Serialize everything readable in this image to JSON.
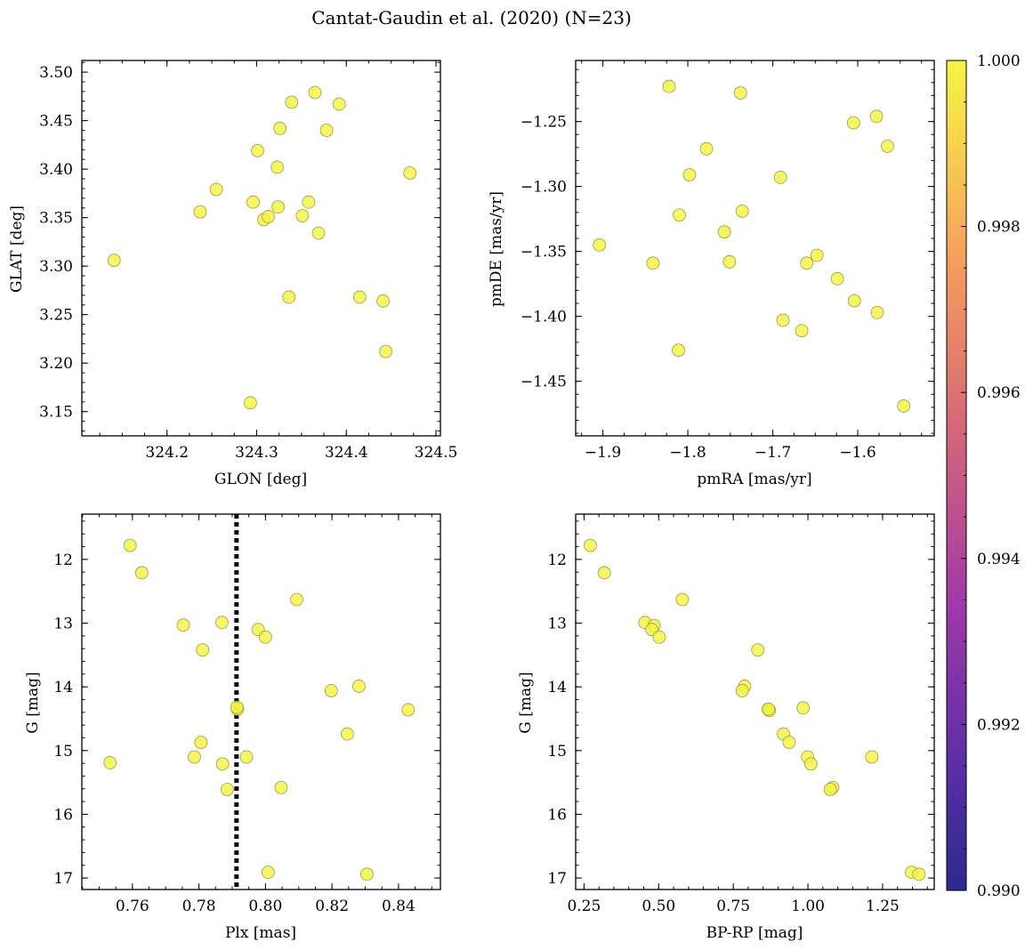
{
  "title": "Cantat-Gaudin et al. (2020) (N=23)",
  "colorbar": {
    "range": [
      0.99,
      1.0
    ],
    "tick_labels": [
      "0.990",
      "0.992",
      "0.994",
      "0.996",
      "0.998",
      "1.000"
    ],
    "colormap": "plasma"
  },
  "point_style": {
    "fill": "#f4f43c",
    "edge": "#9a9a50",
    "alpha": 0.8
  },
  "chart_data": [
    {
      "type": "scatter",
      "xlabel": "GLON [deg]",
      "ylabel": "GLAT [deg]",
      "xlim": [
        324.105,
        324.505
      ],
      "ylim": [
        3.125,
        3.512
      ],
      "x_ticks": [
        "324.2",
        "324.3",
        "324.4",
        "324.5"
      ],
      "y_ticks": [
        "3.15",
        "3.20",
        "3.25",
        "3.30",
        "3.35",
        "3.40",
        "3.45",
        "3.50"
      ],
      "points": [
        [
          324.141,
          3.306
        ],
        [
          324.237,
          3.356
        ],
        [
          324.255,
          3.379
        ],
        [
          324.293,
          3.159
        ],
        [
          324.296,
          3.366
        ],
        [
          324.301,
          3.419
        ],
        [
          324.308,
          3.348
        ],
        [
          324.313,
          3.351
        ],
        [
          324.323,
          3.402
        ],
        [
          324.324,
          3.361
        ],
        [
          324.326,
          3.442
        ],
        [
          324.336,
          3.268
        ],
        [
          324.339,
          3.469
        ],
        [
          324.351,
          3.352
        ],
        [
          324.358,
          3.366
        ],
        [
          324.365,
          3.479
        ],
        [
          324.369,
          3.334
        ],
        [
          324.378,
          3.44
        ],
        [
          324.392,
          3.467
        ],
        [
          324.415,
          3.268
        ],
        [
          324.441,
          3.264
        ],
        [
          324.444,
          3.212
        ],
        [
          324.471,
          3.396
        ]
      ]
    },
    {
      "type": "scatter",
      "xlabel": "pmRA [mas/yr]",
      "ylabel": "pmDE [mas/yr]",
      "xlim": [
        -1.932,
        -1.51
      ],
      "ylim": [
        -1.492,
        -1.203
      ],
      "x_ticks": [
        "−1.9",
        "−1.8",
        "−1.7",
        "−1.6"
      ],
      "y_ticks": [
        "−1.25",
        "−1.30",
        "−1.35",
        "−1.40",
        "−1.45"
      ],
      "points": [
        [
          -1.904,
          -1.345
        ],
        [
          -1.822,
          -1.223
        ],
        [
          -1.841,
          -1.359
        ],
        [
          -1.81,
          -1.322
        ],
        [
          -1.811,
          -1.426
        ],
        [
          -1.798,
          -1.291
        ],
        [
          -1.778,
          -1.271
        ],
        [
          -1.738,
          -1.228
        ],
        [
          -1.736,
          -1.319
        ],
        [
          -1.757,
          -1.335
        ],
        [
          -1.751,
          -1.358
        ],
        [
          -1.691,
          -1.293
        ],
        [
          -1.688,
          -1.403
        ],
        [
          -1.666,
          -1.411
        ],
        [
          -1.66,
          -1.359
        ],
        [
          -1.648,
          -1.353
        ],
        [
          -1.624,
          -1.371
        ],
        [
          -1.605,
          -1.251
        ],
        [
          -1.604,
          -1.388
        ],
        [
          -1.578,
          -1.246
        ],
        [
          -1.577,
          -1.397
        ],
        [
          -1.565,
          -1.269
        ],
        [
          -1.546,
          -1.469
        ]
      ]
    },
    {
      "type": "scatter",
      "xlabel": "Plx [mas]",
      "ylabel": "G [mag]",
      "xlim": [
        0.7448,
        0.8526
      ],
      "ylim": [
        17.18,
        11.29
      ],
      "y_inverted": true,
      "x_ticks": [
        "0.76",
        "0.78",
        "0.80",
        "0.82",
        "0.84"
      ],
      "y_ticks": [
        "12",
        "13",
        "14",
        "15",
        "16",
        "17"
      ],
      "vline": 0.7913,
      "points": [
        [
          0.7593,
          11.78
        ],
        [
          0.7628,
          12.21
        ],
        [
          0.8094,
          12.63
        ],
        [
          0.7869,
          12.99
        ],
        [
          0.7753,
          13.03
        ],
        [
          0.7978,
          13.1
        ],
        [
          0.8,
          13.22
        ],
        [
          0.7811,
          13.42
        ],
        [
          0.8281,
          13.99
        ],
        [
          0.8198,
          14.06
        ],
        [
          0.7916,
          14.35
        ],
        [
          0.8429,
          14.36
        ],
        [
          0.8246,
          14.74
        ],
        [
          0.7806,
          14.87
        ],
        [
          0.7786,
          15.1
        ],
        [
          0.7943,
          15.1
        ],
        [
          0.7871,
          15.21
        ],
        [
          0.7533,
          15.19
        ],
        [
          0.8047,
          15.58
        ],
        [
          0.7885,
          15.61
        ],
        [
          0.8008,
          16.91
        ],
        [
          0.8305,
          16.94
        ],
        [
          0.7914,
          14.32
        ]
      ]
    },
    {
      "type": "scatter",
      "xlabel": "BP-RP [mag]",
      "ylabel": "G [mag]",
      "xlim": [
        0.222,
        1.423
      ],
      "ylim": [
        17.18,
        11.29
      ],
      "y_inverted": true,
      "x_ticks": [
        "0.25",
        "0.50",
        "0.75",
        "1.00",
        "1.25"
      ],
      "y_ticks": [
        "12",
        "13",
        "14",
        "15",
        "16",
        "17"
      ],
      "points": [
        [
          0.271,
          11.78
        ],
        [
          0.318,
          12.21
        ],
        [
          0.579,
          12.63
        ],
        [
          0.454,
          12.99
        ],
        [
          0.485,
          13.04
        ],
        [
          0.477,
          13.1
        ],
        [
          0.502,
          13.22
        ],
        [
          0.832,
          13.42
        ],
        [
          0.788,
          13.99
        ],
        [
          0.78,
          14.06
        ],
        [
          0.867,
          14.35
        ],
        [
          0.871,
          14.37
        ],
        [
          0.984,
          14.33
        ],
        [
          0.918,
          14.74
        ],
        [
          0.937,
          14.87
        ],
        [
          0.999,
          15.1
        ],
        [
          1.01,
          15.21
        ],
        [
          1.214,
          15.1
        ],
        [
          1.083,
          15.58
        ],
        [
          1.075,
          15.61
        ],
        [
          1.347,
          16.91
        ],
        [
          1.372,
          16.94
        ],
        [
          0.868,
          14.35
        ]
      ]
    }
  ]
}
